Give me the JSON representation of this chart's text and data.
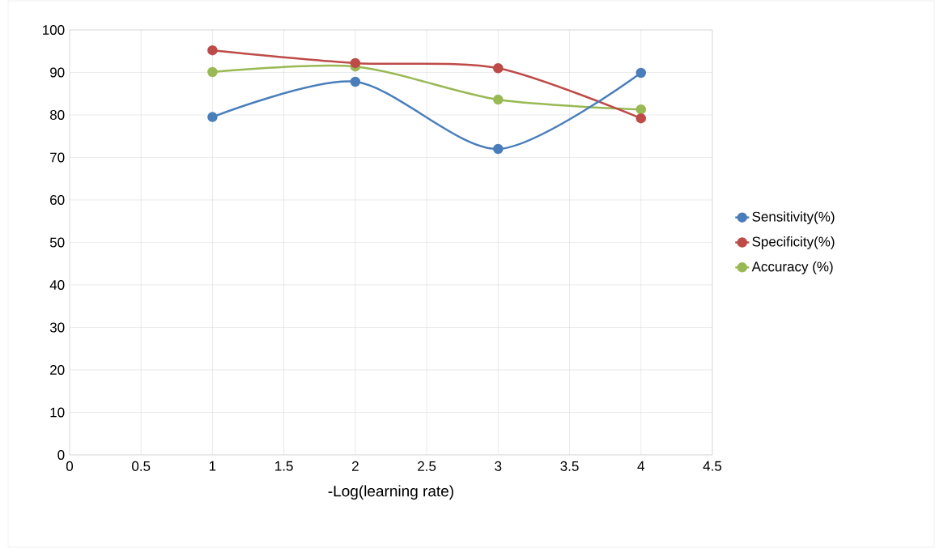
{
  "chart_data": {
    "type": "line",
    "xlabel": "-Log(learning rate)",
    "x": [
      1,
      2,
      3,
      4
    ],
    "series": [
      {
        "name": "Sensitivity(%)",
        "color": "#4a7ebb",
        "values": [
          79.5,
          87.8,
          72.0,
          89.9
        ]
      },
      {
        "name": "Specificity(%)",
        "color": "#be4b48",
        "values": [
          95.2,
          92.2,
          91.0,
          79.2
        ]
      },
      {
        "name": "Accuracy (%)",
        "color": "#98b954",
        "values": [
          90.1,
          91.4,
          83.6,
          81.3
        ]
      }
    ],
    "xlim": [
      0,
      4.5
    ],
    "xticks": [
      0,
      0.5,
      1,
      1.5,
      2,
      2.5,
      3,
      3.5,
      4,
      4.5
    ],
    "ylim": [
      0,
      100
    ],
    "yticks": [
      0,
      10,
      20,
      30,
      40,
      50,
      60,
      70,
      80,
      90,
      100
    ],
    "grid": true,
    "legend": "right",
    "marker": "circle",
    "line_style": "solid"
  }
}
